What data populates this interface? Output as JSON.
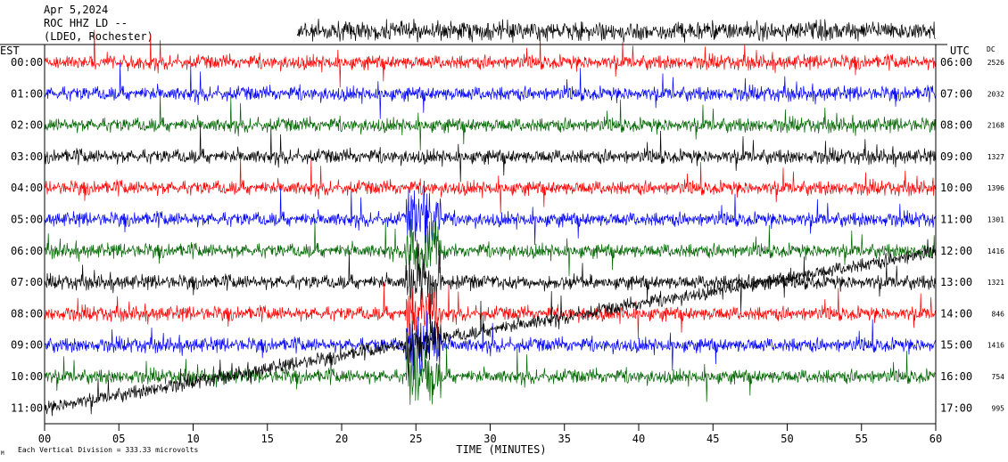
{
  "header": {
    "date": "Apr 5,2024",
    "station": "ROC HHZ LD --",
    "network": "(LDEO, Rochester)"
  },
  "chart_data": {
    "type": "line",
    "title": "",
    "xlabel": "TIME (MINUTES)",
    "left_axis_title": "EST",
    "right_axis_title": "UTC",
    "dc_title": "DC",
    "footer": "Each Vertical Division = 333.33 microvolts",
    "footer_mark": "M",
    "xlim": [
      0,
      60
    ],
    "x_ticks": [
      0,
      5,
      10,
      15,
      20,
      25,
      30,
      35,
      40,
      45,
      50,
      55,
      60
    ],
    "x_tick_labels": [
      "00",
      "05",
      "10",
      "15",
      "20",
      "25",
      "30",
      "35",
      "40",
      "45",
      "50",
      "55",
      "60"
    ],
    "trace_colors": [
      "#ff0000",
      "#0000ff",
      "#006400",
      "#000000"
    ],
    "rows": [
      {
        "est": "00:00",
        "utc": "06:00",
        "dc": "2526"
      },
      {
        "est": "01:00",
        "utc": "07:00",
        "dc": "2032"
      },
      {
        "est": "02:00",
        "utc": "08:00",
        "dc": "2168"
      },
      {
        "est": "03:00",
        "utc": "09:00",
        "dc": "1327"
      },
      {
        "est": "04:00",
        "utc": "10:00",
        "dc": "1396"
      },
      {
        "est": "05:00",
        "utc": "11:00",
        "dc": "1301"
      },
      {
        "est": "06:00",
        "utc": "12:00",
        "dc": "1416"
      },
      {
        "est": "07:00",
        "utc": "13:00",
        "dc": "1321"
      },
      {
        "est": "08:00",
        "utc": "14:00",
        "dc": "846"
      },
      {
        "est": "09:00",
        "utc": "15:00",
        "dc": "1416"
      },
      {
        "est": "10:00",
        "utc": "16:00",
        "dc": "754"
      },
      {
        "est": "11:00",
        "utc": "17:00",
        "dc": "995"
      }
    ],
    "event_minute": 25.5
  }
}
